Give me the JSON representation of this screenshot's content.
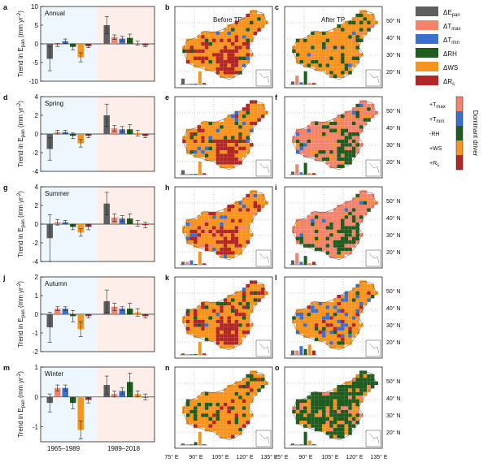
{
  "colors": {
    "dEpan": "#5f5f5f",
    "dTmax": "#f4836c",
    "dTmin": "#3b6fd0",
    "dRH": "#1f5c1f",
    "dWS": "#f7941d",
    "dRs": "#b22626",
    "period1_bg": "#eef7fd",
    "period2_bg": "#fdeeea",
    "map_water": "#ffffff",
    "china_fill": "#f7941d"
  },
  "column_titles": {
    "before": "Before TP",
    "after": "After TP"
  },
  "legend": {
    "items": [
      {
        "label": "ΔE",
        "sub": "pan",
        "color_key": "dEpan"
      },
      {
        "label": "ΔT",
        "sub": "max",
        "color_key": "dTmax"
      },
      {
        "label": "ΔT",
        "sub": "min",
        "color_key": "dTmin"
      },
      {
        "label": "ΔRH",
        "sub": "",
        "color_key": "dRH"
      },
      {
        "label": "ΔWS",
        "sub": "",
        "color_key": "dWS"
      },
      {
        "label": "ΔR",
        "sub": "s",
        "color_key": "dRs"
      }
    ]
  },
  "driver_scale": {
    "title": "Dominant driver",
    "items": [
      {
        "label": "+T",
        "sub": "max",
        "color_key": "dTmax"
      },
      {
        "label": "+T",
        "sub": "min",
        "color_key": "dTmin"
      },
      {
        "label": "-RH",
        "sub": "",
        "color_key": "dRH"
      },
      {
        "label": "+WS",
        "sub": "",
        "color_key": "dWS"
      },
      {
        "label": "+R",
        "sub": "s",
        "color_key": "dRs"
      }
    ]
  },
  "map_axes": {
    "lon_ticks": [
      "75° E",
      "90° E",
      "105° E",
      "120° E",
      "135° E"
    ],
    "lat_ticks": [
      "50° N",
      "40° N",
      "30° N",
      "20° N"
    ]
  },
  "bar_xlabels": [
    "1965–1989",
    "1989–2018"
  ],
  "chart_data": [
    {
      "type": "bar",
      "panel": "a",
      "season": "Annual",
      "ylabel": "Trend in E_pan (mm yr^-2)",
      "ylim": [
        -10,
        10
      ],
      "yticks": [
        -10,
        -5,
        0,
        5,
        10
      ],
      "series_order": [
        "dEpan",
        "dTmax",
        "dTmin",
        "dRH",
        "dWS",
        "dRs"
      ],
      "periods": [
        {
          "name": "1965–1989",
          "values": [
            -4.0,
            -0.3,
            0.7,
            -0.8,
            -3.6,
            -0.6
          ],
          "errors": [
            3.2,
            0.4,
            0.6,
            0.8,
            1.2,
            0.4
          ]
        },
        {
          "name": "1989–2018",
          "values": [
            5.0,
            1.8,
            1.4,
            1.6,
            0.2,
            -0.4
          ],
          "errors": [
            2.3,
            0.6,
            0.6,
            1.0,
            0.5,
            0.4
          ]
        }
      ]
    },
    {
      "type": "bar",
      "panel": "d",
      "season": "Spring",
      "ylabel": "Trend in E_pan (mm yr^-2)",
      "ylim": [
        -4,
        4
      ],
      "yticks": [
        -4,
        -2,
        0,
        2,
        4
      ],
      "series_order": [
        "dEpan",
        "dTmax",
        "dTmin",
        "dRH",
        "dWS",
        "dRs"
      ],
      "periods": [
        {
          "name": "1965–1989",
          "values": [
            -1.6,
            0.2,
            0.2,
            -0.2,
            -1.0,
            -0.2
          ],
          "errors": [
            1.2,
            0.2,
            0.2,
            0.3,
            0.4,
            0.2
          ]
        },
        {
          "name": "1989–2018",
          "values": [
            2.0,
            0.6,
            0.5,
            0.5,
            0.1,
            -0.2
          ],
          "errors": [
            1.2,
            0.3,
            0.3,
            0.5,
            0.3,
            0.2
          ]
        }
      ]
    },
    {
      "type": "bar",
      "panel": "g",
      "season": "Summer",
      "ylabel": "Trend in E_pan (mm yr^-2)",
      "ylim": [
        -4,
        4
      ],
      "yticks": [
        -4,
        -2,
        0,
        2,
        4
      ],
      "series_order": [
        "dEpan",
        "dTmax",
        "dTmin",
        "dRH",
        "dWS",
        "dRs"
      ],
      "periods": [
        {
          "name": "1965–1989",
          "values": [
            -1.5,
            0.2,
            0.2,
            -0.3,
            -0.9,
            -0.3
          ],
          "errors": [
            2.5,
            0.3,
            0.2,
            0.3,
            0.4,
            0.3
          ]
        },
        {
          "name": "1989–2018",
          "values": [
            2.2,
            0.7,
            0.6,
            0.6,
            0.1,
            -0.1
          ],
          "errors": [
            1.2,
            0.4,
            0.3,
            0.5,
            0.3,
            0.3
          ]
        }
      ]
    },
    {
      "type": "bar",
      "panel": "j",
      "season": "Autumn",
      "ylabel": "Trend in E_pan (mm yr^-2)",
      "ylim": [
        -2,
        2
      ],
      "yticks": [
        -2,
        -1,
        0,
        1,
        2
      ],
      "series_order": [
        "dEpan",
        "dTmax",
        "dTmin",
        "dRH",
        "dWS",
        "dRs"
      ],
      "periods": [
        {
          "name": "1965–1989",
          "values": [
            -0.7,
            0.3,
            0.3,
            -0.1,
            -0.8,
            -0.1
          ],
          "errors": [
            0.8,
            0.1,
            0.1,
            0.3,
            0.4,
            0.1
          ]
        },
        {
          "name": "1989–2018",
          "values": [
            0.7,
            0.4,
            0.3,
            0.3,
            0.1,
            -0.1
          ],
          "errors": [
            0.6,
            0.2,
            0.1,
            0.3,
            0.2,
            0.1
          ]
        }
      ]
    },
    {
      "type": "bar",
      "panel": "m",
      "season": "Winter",
      "ylabel": "Trend in E_pan (mm yr^-2)",
      "ylim": [
        -1.5,
        1
      ],
      "yticks": [
        -1,
        0,
        1
      ],
      "series_order": [
        "dEpan",
        "dTmax",
        "dTmin",
        "dRH",
        "dWS",
        "dRs"
      ],
      "periods": [
        {
          "name": "1965–1989",
          "values": [
            -0.2,
            0.3,
            0.3,
            -0.2,
            -1.1,
            -0.1
          ],
          "errors": [
            0.3,
            0.1,
            0.1,
            0.2,
            0.3,
            0.1
          ]
        },
        {
          "name": "1989–2018",
          "values": [
            0.4,
            0.1,
            0.2,
            0.5,
            0.1,
            0.0
          ],
          "errors": [
            0.3,
            0.1,
            0.1,
            0.3,
            0.1,
            0.1
          ]
        }
      ]
    }
  ],
  "maps": [
    {
      "panel": "b",
      "period": "before",
      "dominant": "dWS",
      "secondary": [
        "dRs",
        "dRH",
        "dTmin"
      ],
      "inset_bars": [
        0.4,
        0.05,
        0.05,
        0.05,
        0.9,
        0.1
      ]
    },
    {
      "panel": "c",
      "period": "after",
      "dominant": "dWS",
      "secondary": [
        "dRH",
        "dTmax",
        "dTmin"
      ],
      "inset_bars": [
        0.2,
        0.6,
        0.15,
        0.9,
        0.1,
        0.1
      ]
    },
    {
      "panel": "e",
      "period": "before",
      "dominant": "dWS",
      "secondary": [
        "dRs",
        "dTmin",
        "dRH"
      ],
      "inset_bars": [
        0.3,
        0.05,
        0.05,
        0.05,
        0.9,
        0.1
      ]
    },
    {
      "panel": "f",
      "period": "after",
      "dominant": "dTmax",
      "secondary": [
        "dRH",
        "dWS",
        "dTmin"
      ],
      "inset_bars": [
        0.2,
        0.7,
        0.15,
        0.8,
        0.1,
        0.1
      ]
    },
    {
      "panel": "h",
      "period": "before",
      "dominant": "dWS",
      "secondary": [
        "dRs",
        "dTmin",
        "dTmax"
      ],
      "inset_bars": [
        0.2,
        0.2,
        0.3,
        0.05,
        0.9,
        0.1
      ]
    },
    {
      "panel": "i",
      "period": "after",
      "dominant": "dTmax",
      "secondary": [
        "dRH",
        "dWS",
        "dTmin"
      ],
      "inset_bars": [
        0.3,
        0.8,
        0.2,
        0.6,
        0.1,
        0.2
      ]
    },
    {
      "panel": "k",
      "period": "before",
      "dominant": "dWS",
      "secondary": [
        "dRs",
        "dRH",
        "dTmin"
      ],
      "inset_bars": [
        0.1,
        0.05,
        0.05,
        0.05,
        0.9,
        0.1
      ]
    },
    {
      "panel": "l",
      "period": "after",
      "dominant": "dWS",
      "secondary": [
        "dTmin",
        "dRs",
        "dRH"
      ],
      "inset_bars": [
        0.3,
        0.3,
        0.6,
        0.4,
        0.7,
        0.3
      ]
    },
    {
      "panel": "n",
      "period": "before",
      "dominant": "dWS",
      "secondary": [
        "dRH",
        "dRs"
      ],
      "inset_bars": [
        0.1,
        0.05,
        0.05,
        0.2,
        0.9,
        0.05
      ]
    },
    {
      "panel": "o",
      "period": "after",
      "dominant": "dRH",
      "secondary": [
        "dWS",
        "dTmax"
      ],
      "inset_bars": [
        0.1,
        0.05,
        0.05,
        0.9,
        0.3,
        0.05
      ]
    }
  ]
}
